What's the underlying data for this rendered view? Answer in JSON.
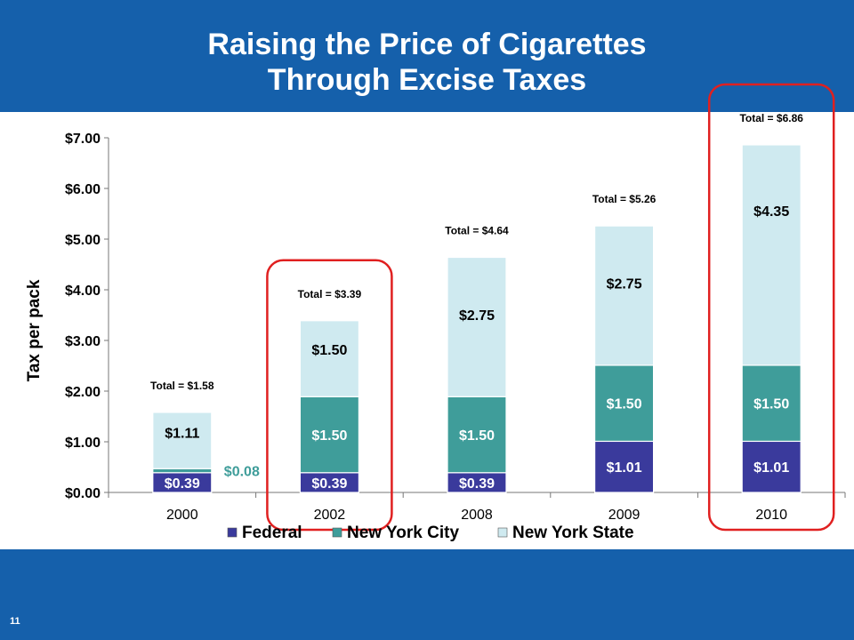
{
  "slide": {
    "title_line1": "Raising the Price of Cigarettes",
    "title_line2": "Through Excise Taxes",
    "page_number": "11"
  },
  "colors": {
    "header_bg": "#1560ab",
    "federal": "#3a3a9c",
    "new_york_city": "#3f9d9a",
    "new_york_state": "#cfeaf0",
    "highlight": "#e02020"
  },
  "chart_data": {
    "type": "bar",
    "stacked": true,
    "ylabel": "Tax per pack",
    "ylim": [
      0,
      7
    ],
    "yticks": [
      "$0.00",
      "$1.00",
      "$2.00",
      "$3.00",
      "$4.00",
      "$5.00",
      "$6.00",
      "$7.00"
    ],
    "categories": [
      "2000",
      "2002",
      "2008",
      "2009",
      "2010"
    ],
    "series": [
      {
        "name": "Federal",
        "values": [
          0.39,
          0.39,
          0.39,
          1.01,
          1.01
        ],
        "labels": [
          "$0.39",
          "$0.39",
          "$0.39",
          "$1.01",
          "$1.01"
        ]
      },
      {
        "name": "New York City",
        "values": [
          0.08,
          1.5,
          1.5,
          1.5,
          1.5
        ],
        "labels": [
          "$0.08",
          "$1.50",
          "$1.50",
          "$1.50",
          "$1.50"
        ]
      },
      {
        "name": "New York State",
        "values": [
          1.11,
          1.5,
          2.75,
          2.75,
          4.35
        ],
        "labels": [
          "$1.11",
          "$1.50",
          "$2.75",
          "$2.75",
          "$4.35"
        ]
      }
    ],
    "totals": [
      "Total = $1.58",
      "Total = $3.39",
      "Total = $4.64",
      "Total = $5.26",
      "Total = $6.86"
    ],
    "highlighted_categories": [
      "2002",
      "2010"
    ],
    "legend_position": "bottom",
    "grid": false
  }
}
